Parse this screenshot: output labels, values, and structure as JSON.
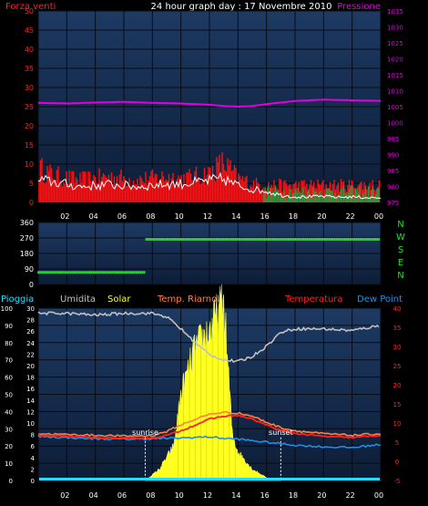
{
  "header": {
    "title": "24 hour graph day : 17 Novembre 2010",
    "left_label": "Forza venti",
    "right_label": "Pressione"
  },
  "colors": {
    "panel_bg_top": "#1d3a63",
    "panel_bg_bottom": "#0d1d36",
    "grid": "#0a0a14",
    "wind": "#ff1010",
    "gust": "#ffffff",
    "pressure": "#e000e0",
    "direction": "#20e020",
    "pressure_axis": "#e000e0",
    "wind_axis": "#ff2020",
    "humidity": "#c0c0c0",
    "solar": "#ffff20",
    "temperature": "#ff2020",
    "riarnoli": "#ff8040",
    "dewpoint": "#2090e0",
    "rain": "#20e0ff",
    "left_axis_text": "#ffffff",
    "right_axis_text_bottom": "#ff2020",
    "direction_axis_text": "#20e020"
  },
  "x_ticks": [
    "02",
    "04",
    "06",
    "08",
    "10",
    "12",
    "14",
    "16",
    "18",
    "20",
    "22",
    "00"
  ],
  "chart_data": [
    {
      "type": "line",
      "name": "wind-and-pressure",
      "left_axis": {
        "label": "Forza venti",
        "ylim": [
          0,
          50
        ],
        "ticks": [
          0,
          5,
          10,
          15,
          20,
          25,
          30,
          35,
          40,
          45,
          50
        ]
      },
      "right_axis": {
        "label": "Pressione",
        "ylim": [
          975,
          1035
        ],
        "ticks": [
          975,
          980,
          985,
          990,
          995,
          1000,
          1005,
          1010,
          1015,
          1020,
          1025,
          1030,
          1035
        ]
      },
      "pressure": {
        "x": [
          0,
          2,
          4,
          6,
          8,
          10,
          12,
          13,
          14,
          15,
          16,
          18,
          20,
          22,
          24
        ],
        "y": [
          1006.2,
          1006.0,
          1006.3,
          1006.5,
          1006.2,
          1006.0,
          1005.6,
          1005.2,
          1005.0,
          1005.2,
          1005.8,
          1006.8,
          1007.2,
          1007.0,
          1006.8
        ]
      },
      "wind_avg": {
        "x": [
          0,
          1,
          2,
          3,
          4,
          5,
          6,
          7,
          8,
          9,
          10,
          11,
          12,
          13,
          14,
          15,
          16,
          17,
          18,
          19,
          20,
          21,
          22,
          23,
          24
        ],
        "y": [
          6,
          5.5,
          4.8,
          4.2,
          4.5,
          4.8,
          4.5,
          4.2,
          4.6,
          4.9,
          5.0,
          5.3,
          5.8,
          6.2,
          4.5,
          3.5,
          3.0,
          2.0,
          1.5,
          1.5,
          1.6,
          1.4,
          1.5,
          1.3,
          1.2
        ]
      },
      "wind_gust": {
        "x": [
          0,
          1,
          2,
          3,
          4,
          5,
          6,
          7,
          8,
          9,
          10,
          11,
          12,
          13,
          14,
          15,
          16,
          17,
          18,
          19,
          20,
          21,
          22,
          23,
          24
        ],
        "y": [
          10,
          8,
          7,
          6.5,
          7,
          7.5,
          7,
          6.5,
          7,
          7.5,
          7,
          7.5,
          8.5,
          11.5,
          7,
          5.5,
          5,
          5,
          5,
          5,
          5,
          5,
          5,
          5,
          5
        ]
      }
    },
    {
      "type": "scatter",
      "name": "wind-direction",
      "right_axis": {
        "labels": [
          "N",
          "W",
          "S",
          "E",
          "N"
        ]
      },
      "ylim": [
        0,
        360
      ],
      "left_axis": {
        "ticks": [
          0,
          90,
          180,
          270,
          360
        ]
      },
      "direction": {
        "x": [
          0,
          7.5,
          7.5,
          24
        ],
        "y": [
          70,
          70,
          262,
          262
        ]
      }
    },
    {
      "type": "line",
      "name": "weather",
      "legend": [
        "Pioggia",
        "Umidita",
        "Solar",
        "Temp. Riarnoli",
        "Temperatura",
        "Dew Point"
      ],
      "left_axis_outer": {
        "ylim": [
          0,
          100
        ],
        "ticks": [
          0,
          10,
          20,
          30,
          40,
          50,
          60,
          70,
          80,
          90,
          100
        ]
      },
      "left_axis_inner": {
        "ylim": [
          0,
          30
        ],
        "ticks": [
          0,
          2,
          4,
          6,
          8,
          10,
          12,
          14,
          16,
          18,
          20,
          22,
          24,
          26,
          28,
          30
        ]
      },
      "right_axis": {
        "ylim": [
          -5,
          40
        ],
        "ticks": [
          -5,
          0,
          5,
          10,
          15,
          20,
          25,
          30,
          35,
          40
        ]
      },
      "humidity": {
        "x": [
          0,
          2,
          4,
          6,
          8,
          9,
          10,
          11,
          12,
          13,
          14,
          15,
          16,
          17,
          18,
          20,
          22,
          24
        ],
        "y": [
          97,
          97,
          96,
          97,
          97,
          95,
          88,
          80,
          73,
          70,
          69,
          72,
          78,
          86,
          88,
          88,
          87,
          90
        ]
      },
      "temperature": {
        "x": [
          0,
          2,
          4,
          6,
          8,
          9,
          10,
          11,
          12,
          13,
          14,
          15,
          16,
          17,
          18,
          20,
          22,
          24
        ],
        "y": [
          6.8,
          6.5,
          6.2,
          6.0,
          6.1,
          6.8,
          8.0,
          9.5,
          11.0,
          11.8,
          12.0,
          11.0,
          9.5,
          8.0,
          7.3,
          6.5,
          6.2,
          6.8
        ]
      },
      "riarnoli": {
        "x": [
          0,
          2,
          4,
          6,
          8,
          9,
          10,
          11,
          12,
          13,
          14,
          15,
          16,
          17,
          18,
          20,
          22,
          24
        ],
        "y": [
          7.2,
          7.0,
          6.8,
          6.6,
          6.7,
          7.8,
          9.5,
          11.0,
          12.3,
          12.8,
          12.6,
          11.8,
          10.2,
          8.8,
          8.0,
          7.2,
          6.8,
          7.2
        ]
      },
      "dewpoint": {
        "x": [
          0,
          2,
          4,
          6,
          8,
          10,
          12,
          13,
          14,
          16,
          18,
          20,
          22,
          24
        ],
        "y": [
          6.5,
          6.2,
          5.9,
          5.8,
          5.9,
          6.1,
          6.4,
          6.0,
          5.8,
          5.0,
          4.2,
          3.8,
          3.6,
          4.4
        ]
      },
      "solar": {
        "x": [
          7.5,
          8.5,
          9.5,
          10,
          11,
          12,
          12.6,
          13,
          13.3,
          13.6,
          14,
          15,
          16,
          17
        ],
        "y": [
          0,
          2,
          6,
          15,
          23,
          26,
          29,
          31,
          20,
          8,
          5,
          2,
          0.5,
          0
        ]
      },
      "rain": {
        "x": [
          0,
          24
        ],
        "y": [
          0,
          0
        ]
      },
      "annotations": [
        {
          "label": "sunrise",
          "x": 7.5
        },
        {
          "label": "sunset",
          "x": 17.0
        }
      ]
    }
  ],
  "legend_labels": {
    "pioggia": "Pioggia",
    "umidita": "Umidita",
    "solar": "Solar",
    "riarnoli": "Temp. Riarnoli",
    "temperatura": "Temperatura",
    "dewpoint": "Dew Point"
  }
}
